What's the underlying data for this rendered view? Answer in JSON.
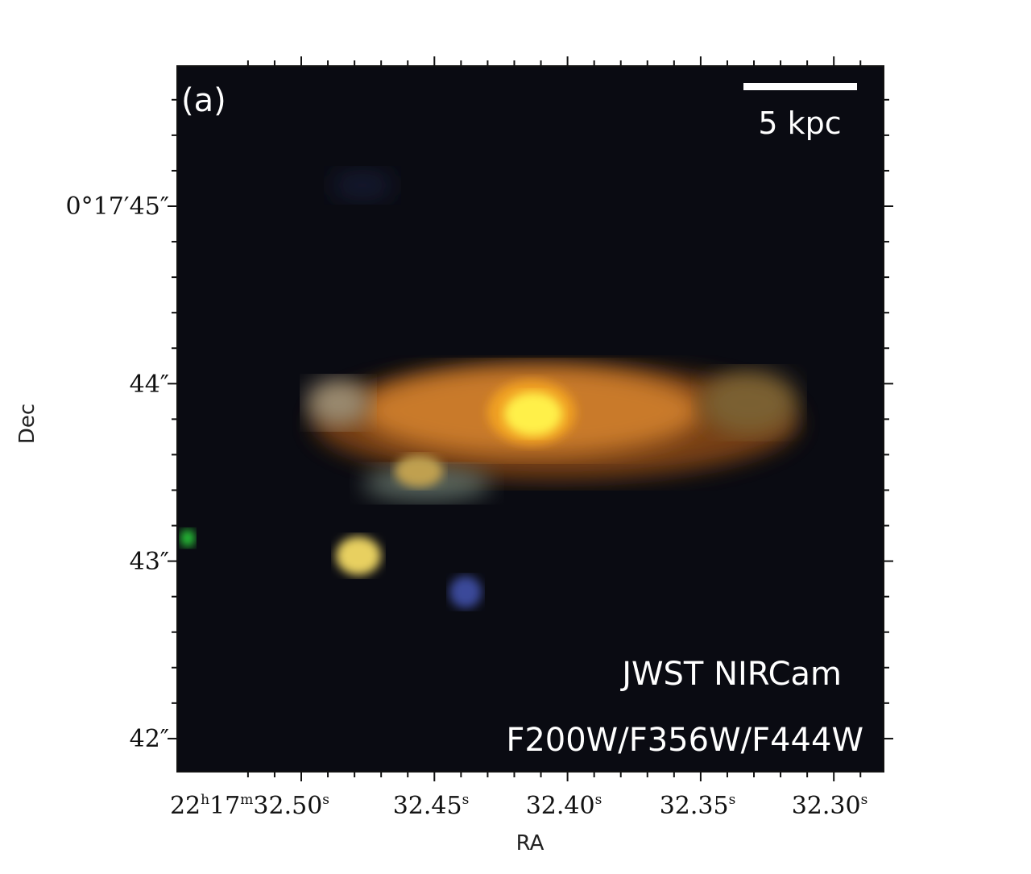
{
  "panel_label": "(a)",
  "scale_bar": {
    "label": "5 kpc",
    "color": "#ffffff"
  },
  "instrument_label": "JWST NIRCam",
  "filters_label": "F200W/F356W/F444W",
  "axes": {
    "xlabel": "RA",
    "ylabel": "Dec",
    "x_ticks": [
      "22h17m32.50s",
      "32.45s",
      "32.40s",
      "32.35s",
      "32.30s"
    ],
    "x_tick_parts": [
      {
        "hours": "22",
        "minutes": "17",
        "seconds": "32.50"
      },
      {
        "seconds": "32.45"
      },
      {
        "seconds": "32.40"
      },
      {
        "seconds": "32.35"
      },
      {
        "seconds": "32.30"
      }
    ],
    "y_ticks": [
      "0°17′45″",
      "44″",
      "43″",
      "42″"
    ]
  },
  "colors": {
    "background": "#0a0b12",
    "galaxy_core": "#fff04a",
    "galaxy_disk": "#d9882e",
    "companion": "#e8d060",
    "blue_source": "#3a4a9a",
    "green_source": "#2bd63a"
  }
}
